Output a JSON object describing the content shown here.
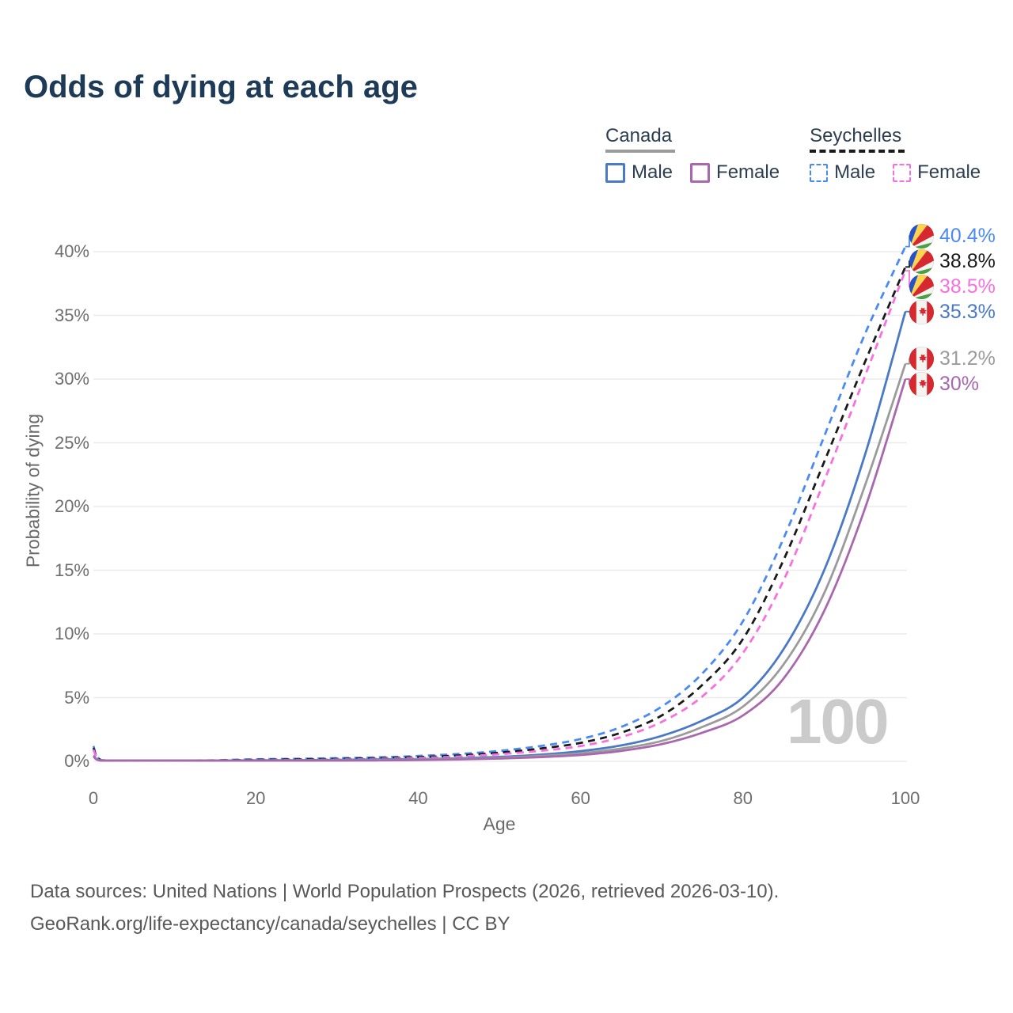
{
  "title": "Odds of dying at each age",
  "watermark": "100",
  "legend": {
    "groups": [
      {
        "label": "Canada",
        "swatch_style": "solid",
        "swatch_color": "#9b9b9b",
        "items": [
          {
            "label": "Male",
            "color": "#4a79c5"
          },
          {
            "label": "Female",
            "color": "#a968ae"
          }
        ]
      },
      {
        "label": "Seychelles",
        "swatch_style": "dashed",
        "swatch_color": "#1a1a1a",
        "items": [
          {
            "label": "Male",
            "color": "#4a8af4"
          },
          {
            "label": "Female",
            "color": "#f870e0"
          }
        ]
      }
    ]
  },
  "footer": {
    "line1": "Data sources: United Nations | World Population Prospects (2026, retrieved 2026-03-10).",
    "line2": "GeoRank.org/life-expectancy/canada/seychelles | CC BY"
  },
  "chart_data": {
    "type": "line",
    "title": "Odds of dying at each age",
    "xlabel": "Age",
    "ylabel": "Probability of dying",
    "xlim": [
      0,
      100
    ],
    "ylim": [
      0,
      42
    ],
    "xticks": [
      0,
      20,
      40,
      60,
      80,
      100
    ],
    "yticks": [
      0,
      5,
      10,
      15,
      20,
      25,
      30,
      35,
      40
    ],
    "ytick_suffix": "%",
    "grid": "horizontal",
    "legend_position": "top-right",
    "x": [
      0,
      1,
      5,
      10,
      15,
      20,
      25,
      30,
      35,
      40,
      45,
      50,
      55,
      60,
      65,
      70,
      75,
      80,
      85,
      90,
      95,
      100
    ],
    "series": [
      {
        "name": "Seychelles Male",
        "slug": "seychelles-male",
        "country": "Seychelles",
        "sex": "Male",
        "color": "#4a8af4",
        "dashed": true,
        "flag": "seychelles",
        "end_label": "40.4%",
        "values": [
          1.2,
          0.09,
          0.04,
          0.04,
          0.09,
          0.16,
          0.2,
          0.25,
          0.31,
          0.42,
          0.58,
          0.82,
          1.2,
          1.75,
          2.7,
          4.3,
          6.9,
          11.0,
          17.5,
          25.5,
          33.5,
          40.4
        ]
      },
      {
        "name": "Seychelles Both sexes",
        "slug": "seychelles-both-sexes",
        "country": "Seychelles",
        "sex": "Both sexes",
        "color": "#1a1a1a",
        "dashed": true,
        "flag": "seychelles",
        "end_label": "38.8%",
        "values": [
          1.05,
          0.08,
          0.035,
          0.035,
          0.07,
          0.12,
          0.15,
          0.19,
          0.25,
          0.33,
          0.46,
          0.68,
          1.0,
          1.45,
          2.25,
          3.6,
          6.0,
          9.6,
          15.8,
          23.5,
          31.3,
          38.8
        ]
      },
      {
        "name": "Seychelles Female",
        "slug": "seychelles-female",
        "country": "Seychelles",
        "sex": "Female",
        "color": "#f870e0",
        "dashed": true,
        "flag": "seychelles",
        "end_label": "38.5%",
        "values": [
          0.9,
          0.07,
          0.03,
          0.03,
          0.05,
          0.08,
          0.1,
          0.14,
          0.19,
          0.26,
          0.37,
          0.56,
          0.82,
          1.2,
          1.9,
          3.1,
          5.1,
          8.5,
          14.2,
          22.0,
          30.2,
          38.5
        ]
      },
      {
        "name": "Canada Male",
        "slug": "canada-male",
        "country": "Canada",
        "sex": "Male",
        "color": "#4a79c5",
        "dashed": false,
        "flag": "canada",
        "end_label": "35.3%",
        "values": [
          0.45,
          0.03,
          0.01,
          0.012,
          0.05,
          0.08,
          0.09,
          0.11,
          0.14,
          0.18,
          0.24,
          0.35,
          0.52,
          0.8,
          1.25,
          2.0,
          3.2,
          5.0,
          8.8,
          15.0,
          24.0,
          35.3
        ]
      },
      {
        "name": "Canada Both sexes",
        "slug": "canada-both-sexes",
        "country": "Canada",
        "sex": "Both sexes",
        "color": "#9b9b9b",
        "dashed": false,
        "flag": "canada",
        "end_label": "31.2%",
        "values": [
          0.42,
          0.027,
          0.009,
          0.01,
          0.035,
          0.055,
          0.065,
          0.08,
          0.1,
          0.14,
          0.19,
          0.28,
          0.42,
          0.63,
          1.0,
          1.6,
          2.7,
          4.3,
          7.6,
          13.2,
          21.6,
          31.2
        ]
      },
      {
        "name": "Canada Female",
        "slug": "canada-female",
        "country": "Canada",
        "sex": "Female",
        "color": "#a968ae",
        "dashed": false,
        "flag": "canada",
        "end_label": "30%",
        "values": [
          0.38,
          0.024,
          0.008,
          0.009,
          0.025,
          0.035,
          0.045,
          0.055,
          0.075,
          0.1,
          0.15,
          0.22,
          0.33,
          0.5,
          0.82,
          1.35,
          2.25,
          3.6,
          6.5,
          11.8,
          19.8,
          30.0
        ]
      }
    ]
  }
}
